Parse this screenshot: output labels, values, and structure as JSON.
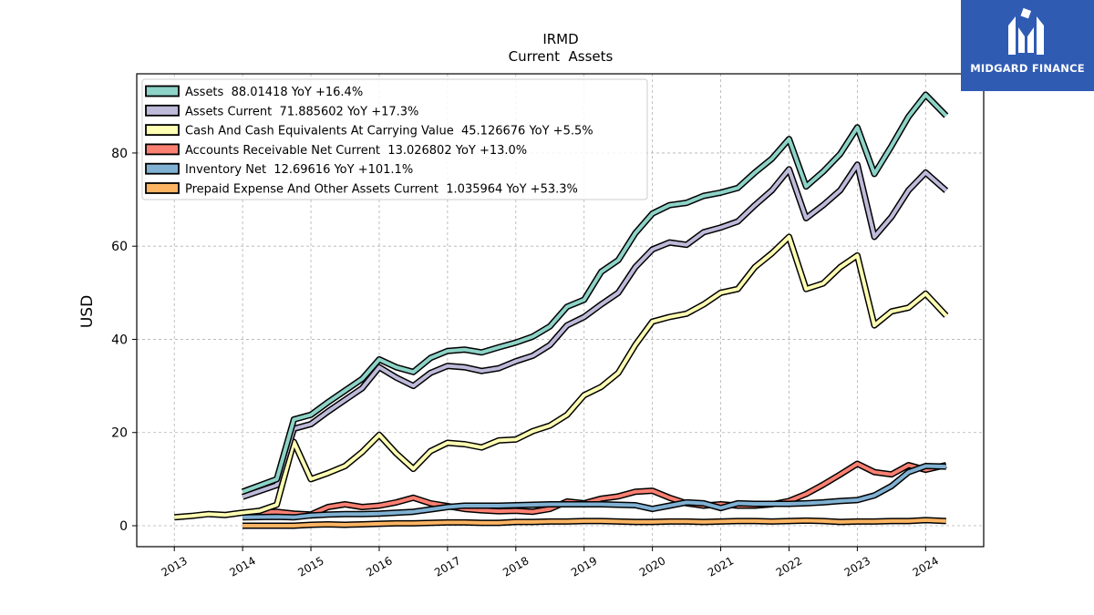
{
  "brand": {
    "name": "MIDGARD FINANCE",
    "color": "#2f5bb3"
  },
  "chart_data": {
    "type": "line",
    "title": "IRMD",
    "subtitle": "Current  Assets",
    "ylabel": "USD",
    "xlabel": "",
    "ylim": [
      -4.5,
      97
    ],
    "xlim": [
      2012.45,
      2024.85
    ],
    "yticks": [
      0,
      20,
      40,
      60,
      80
    ],
    "xticks": [
      "2013",
      "2014",
      "2015",
      "2016",
      "2017",
      "2018",
      "2019",
      "2020",
      "2021",
      "2022",
      "2023",
      "2024"
    ],
    "grid": true,
    "legend_position": "top-left",
    "series": [
      {
        "name": "Assets  88.01418 YoY +16.4%",
        "color": "#8dd3c7",
        "points": [
          [
            2014.0,
            7.3
          ],
          [
            2014.5,
            10.0
          ],
          [
            2014.75,
            22.8
          ],
          [
            2015.0,
            23.8
          ],
          [
            2015.25,
            26.5
          ],
          [
            2015.5,
            29.0
          ],
          [
            2015.75,
            31.5
          ],
          [
            2016.0,
            35.7
          ],
          [
            2016.25,
            34.0
          ],
          [
            2016.5,
            33.0
          ],
          [
            2016.75,
            36.0
          ],
          [
            2017.0,
            37.5
          ],
          [
            2017.25,
            37.8
          ],
          [
            2017.5,
            37.2
          ],
          [
            2017.75,
            38.3
          ],
          [
            2018.0,
            39.3
          ],
          [
            2018.25,
            40.6
          ],
          [
            2018.5,
            42.8
          ],
          [
            2018.75,
            47.0
          ],
          [
            2019.0,
            48.5
          ],
          [
            2019.25,
            54.5
          ],
          [
            2019.5,
            57.0
          ],
          [
            2019.75,
            62.8
          ],
          [
            2020.0,
            67.0
          ],
          [
            2020.25,
            68.8
          ],
          [
            2020.5,
            69.3
          ],
          [
            2020.75,
            70.8
          ],
          [
            2021.0,
            71.5
          ],
          [
            2021.25,
            72.5
          ],
          [
            2021.5,
            75.8
          ],
          [
            2021.75,
            78.8
          ],
          [
            2022.0,
            83.0
          ],
          [
            2022.25,
            72.8
          ],
          [
            2022.5,
            76.0
          ],
          [
            2022.75,
            79.8
          ],
          [
            2023.0,
            85.5
          ],
          [
            2023.25,
            75.5
          ],
          [
            2023.5,
            81.5
          ],
          [
            2023.75,
            87.8
          ],
          [
            2024.0,
            92.5
          ],
          [
            2024.3,
            88.0
          ]
        ]
      },
      {
        "name": "Assets Current  71.885602 YoY +17.3%",
        "color": "#bebada",
        "points": [
          [
            2014.0,
            6.2
          ],
          [
            2014.5,
            8.7
          ],
          [
            2014.75,
            20.8
          ],
          [
            2015.0,
            21.8
          ],
          [
            2015.25,
            24.5
          ],
          [
            2015.5,
            27.0
          ],
          [
            2015.75,
            29.5
          ],
          [
            2016.0,
            34.0
          ],
          [
            2016.25,
            31.8
          ],
          [
            2016.5,
            30.0
          ],
          [
            2016.75,
            32.8
          ],
          [
            2017.0,
            34.3
          ],
          [
            2017.25,
            34.0
          ],
          [
            2017.5,
            33.2
          ],
          [
            2017.75,
            33.8
          ],
          [
            2018.0,
            35.3
          ],
          [
            2018.25,
            36.5
          ],
          [
            2018.5,
            38.8
          ],
          [
            2018.75,
            43.0
          ],
          [
            2019.0,
            44.8
          ],
          [
            2019.25,
            47.5
          ],
          [
            2019.5,
            50.0
          ],
          [
            2019.75,
            55.5
          ],
          [
            2020.0,
            59.3
          ],
          [
            2020.25,
            60.8
          ],
          [
            2020.5,
            60.3
          ],
          [
            2020.75,
            63.0
          ],
          [
            2021.0,
            64.0
          ],
          [
            2021.25,
            65.3
          ],
          [
            2021.5,
            68.8
          ],
          [
            2021.75,
            72.0
          ],
          [
            2022.0,
            76.5
          ],
          [
            2022.25,
            66.0
          ],
          [
            2022.5,
            68.8
          ],
          [
            2022.75,
            72.0
          ],
          [
            2023.0,
            77.5
          ],
          [
            2023.25,
            62.0
          ],
          [
            2023.5,
            66.3
          ],
          [
            2023.75,
            72.0
          ],
          [
            2024.0,
            75.8
          ],
          [
            2024.3,
            71.9
          ]
        ]
      },
      {
        "name": "Cash And Cash Equivalents At Carrying Value  45.126676 YoY +5.5%",
        "color": "#ffffb3",
        "points": [
          [
            2013.0,
            1.8
          ],
          [
            2013.25,
            2.1
          ],
          [
            2013.5,
            2.5
          ],
          [
            2013.75,
            2.3
          ],
          [
            2014.0,
            2.8
          ],
          [
            2014.25,
            3.2
          ],
          [
            2014.5,
            4.5
          ],
          [
            2014.75,
            18.0
          ],
          [
            2015.0,
            10.0
          ],
          [
            2015.25,
            11.3
          ],
          [
            2015.5,
            12.8
          ],
          [
            2015.75,
            15.8
          ],
          [
            2016.0,
            19.5
          ],
          [
            2016.25,
            15.5
          ],
          [
            2016.5,
            12.2
          ],
          [
            2016.75,
            16.0
          ],
          [
            2017.0,
            17.8
          ],
          [
            2017.25,
            17.5
          ],
          [
            2017.5,
            16.8
          ],
          [
            2017.75,
            18.3
          ],
          [
            2018.0,
            18.5
          ],
          [
            2018.25,
            20.3
          ],
          [
            2018.5,
            21.5
          ],
          [
            2018.75,
            23.8
          ],
          [
            2019.0,
            28.0
          ],
          [
            2019.25,
            29.8
          ],
          [
            2019.5,
            32.8
          ],
          [
            2019.75,
            38.8
          ],
          [
            2020.0,
            43.8
          ],
          [
            2020.25,
            44.8
          ],
          [
            2020.5,
            45.5
          ],
          [
            2020.75,
            47.5
          ],
          [
            2021.0,
            50.0
          ],
          [
            2021.25,
            50.8
          ],
          [
            2021.5,
            55.5
          ],
          [
            2021.75,
            58.5
          ],
          [
            2022.0,
            62.0
          ],
          [
            2022.25,
            50.8
          ],
          [
            2022.5,
            52.0
          ],
          [
            2022.75,
            55.5
          ],
          [
            2023.0,
            58.0
          ],
          [
            2023.25,
            43.0
          ],
          [
            2023.5,
            46.0
          ],
          [
            2023.75,
            46.8
          ],
          [
            2024.0,
            49.8
          ],
          [
            2024.3,
            45.1
          ]
        ]
      },
      {
        "name": "Accounts Receivable Net Current  13.026802 YoY +13.0%",
        "color": "#fb8072",
        "points": [
          [
            2014.0,
            2.8
          ],
          [
            2014.5,
            3.0
          ],
          [
            2014.75,
            2.6
          ],
          [
            2015.0,
            2.4
          ],
          [
            2015.25,
            4.0
          ],
          [
            2015.5,
            4.6
          ],
          [
            2015.75,
            4.0
          ],
          [
            2016.0,
            4.3
          ],
          [
            2016.25,
            5.0
          ],
          [
            2016.5,
            6.0
          ],
          [
            2016.75,
            4.8
          ],
          [
            2017.0,
            4.2
          ],
          [
            2017.25,
            3.6
          ],
          [
            2017.5,
            3.3
          ],
          [
            2017.75,
            3.1
          ],
          [
            2018.0,
            3.2
          ],
          [
            2018.25,
            3.0
          ],
          [
            2018.5,
            3.6
          ],
          [
            2018.75,
            5.2
          ],
          [
            2019.0,
            4.8
          ],
          [
            2019.25,
            5.8
          ],
          [
            2019.5,
            6.3
          ],
          [
            2019.75,
            7.3
          ],
          [
            2020.0,
            7.5
          ],
          [
            2020.25,
            6.0
          ],
          [
            2020.5,
            4.8
          ],
          [
            2020.75,
            4.3
          ],
          [
            2021.0,
            4.6
          ],
          [
            2021.25,
            4.3
          ],
          [
            2021.5,
            4.3
          ],
          [
            2021.75,
            4.6
          ],
          [
            2022.0,
            5.3
          ],
          [
            2022.25,
            6.8
          ],
          [
            2022.5,
            8.8
          ],
          [
            2022.75,
            11.0
          ],
          [
            2023.0,
            13.3
          ],
          [
            2023.25,
            11.5
          ],
          [
            2023.5,
            11.0
          ],
          [
            2023.75,
            13.0
          ],
          [
            2024.0,
            12.0
          ],
          [
            2024.3,
            13.0
          ]
        ]
      },
      {
        "name": "Inventory Net  12.69616 YoY +101.1%",
        "color": "#80b1d3",
        "points": [
          [
            2014.0,
            1.8
          ],
          [
            2014.5,
            1.9
          ],
          [
            2014.75,
            1.8
          ],
          [
            2015.0,
            2.2
          ],
          [
            2015.25,
            2.4
          ],
          [
            2015.5,
            2.5
          ],
          [
            2015.75,
            2.5
          ],
          [
            2016.0,
            2.6
          ],
          [
            2016.25,
            2.8
          ],
          [
            2016.5,
            3.0
          ],
          [
            2016.75,
            3.5
          ],
          [
            2017.0,
            4.0
          ],
          [
            2017.25,
            4.3
          ],
          [
            2017.5,
            4.3
          ],
          [
            2017.75,
            4.3
          ],
          [
            2018.0,
            4.4
          ],
          [
            2018.25,
            4.5
          ],
          [
            2018.5,
            4.6
          ],
          [
            2018.75,
            4.6
          ],
          [
            2019.0,
            4.6
          ],
          [
            2019.25,
            4.6
          ],
          [
            2019.5,
            4.5
          ],
          [
            2019.75,
            4.4
          ],
          [
            2020.0,
            3.6
          ],
          [
            2020.25,
            4.3
          ],
          [
            2020.5,
            5.0
          ],
          [
            2020.75,
            4.8
          ],
          [
            2021.0,
            3.8
          ],
          [
            2021.25,
            4.8
          ],
          [
            2021.5,
            4.7
          ],
          [
            2021.75,
            4.7
          ],
          [
            2022.0,
            4.7
          ],
          [
            2022.25,
            4.8
          ],
          [
            2022.5,
            5.0
          ],
          [
            2022.75,
            5.3
          ],
          [
            2023.0,
            5.5
          ],
          [
            2023.25,
            6.5
          ],
          [
            2023.5,
            8.5
          ],
          [
            2023.75,
            11.5
          ],
          [
            2024.0,
            12.8
          ],
          [
            2024.3,
            12.7
          ]
        ]
      },
      {
        "name": "Prepaid Expense And Other Assets Current  1.035964 YoY +53.3%",
        "color": "#fdb462",
        "points": [
          [
            2014.0,
            0.0
          ],
          [
            2014.5,
            0.0
          ],
          [
            2014.75,
            0.0
          ],
          [
            2015.0,
            0.2
          ],
          [
            2015.25,
            0.3
          ],
          [
            2015.5,
            0.2
          ],
          [
            2015.75,
            0.3
          ],
          [
            2016.0,
            0.4
          ],
          [
            2016.25,
            0.5
          ],
          [
            2016.5,
            0.5
          ],
          [
            2016.75,
            0.6
          ],
          [
            2017.0,
            0.7
          ],
          [
            2017.25,
            0.7
          ],
          [
            2017.5,
            0.6
          ],
          [
            2017.75,
            0.6
          ],
          [
            2018.0,
            0.8
          ],
          [
            2018.25,
            0.8
          ],
          [
            2018.5,
            0.9
          ],
          [
            2018.75,
            0.9
          ],
          [
            2019.0,
            1.0
          ],
          [
            2019.25,
            1.0
          ],
          [
            2019.5,
            0.9
          ],
          [
            2019.75,
            0.8
          ],
          [
            2020.0,
            0.8
          ],
          [
            2020.25,
            0.9
          ],
          [
            2020.5,
            0.9
          ],
          [
            2020.75,
            0.8
          ],
          [
            2021.0,
            0.9
          ],
          [
            2021.25,
            1.0
          ],
          [
            2021.5,
            1.0
          ],
          [
            2021.75,
            0.9
          ],
          [
            2022.0,
            1.0
          ],
          [
            2022.25,
            1.1
          ],
          [
            2022.5,
            1.0
          ],
          [
            2022.75,
            0.8
          ],
          [
            2023.0,
            0.9
          ],
          [
            2023.25,
            0.9
          ],
          [
            2023.5,
            1.0
          ],
          [
            2023.75,
            1.0
          ],
          [
            2024.0,
            1.2
          ],
          [
            2024.3,
            1.0
          ]
        ]
      }
    ]
  }
}
